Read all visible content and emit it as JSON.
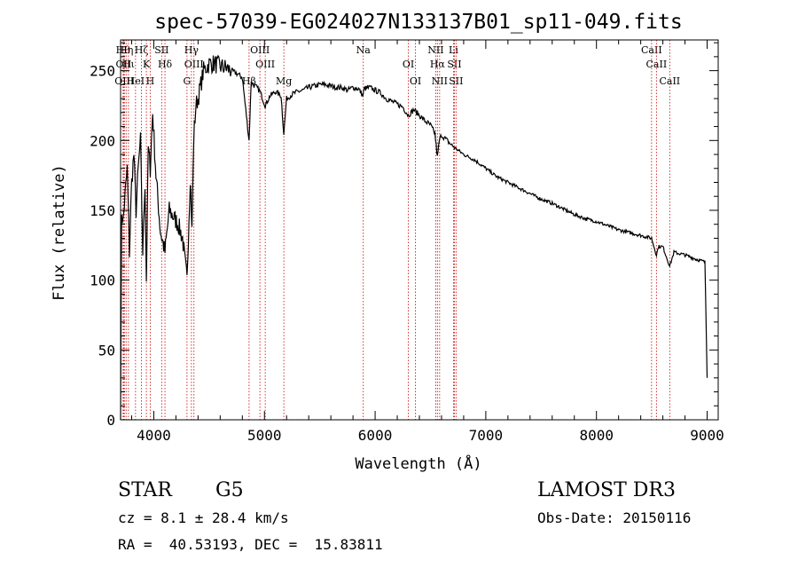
{
  "chart_data": {
    "type": "line",
    "title": "spec-57039-EG024027N133137B01_sp11-049.fits",
    "xlabel": "Wavelength (Å)",
    "ylabel": "Flux (relative)",
    "xlim": [
      3700,
      9100
    ],
    "ylim": [
      0,
      272
    ],
    "xticks": [
      4000,
      5000,
      6000,
      7000,
      8000,
      9000
    ],
    "yticks": [
      0,
      50,
      100,
      150,
      200,
      250
    ],
    "line_color": "#000000",
    "marker_color": "#cc0000",
    "series": [
      {
        "x": [
          3700,
          3710,
          3720,
          3740,
          3760,
          3780,
          3800,
          3820,
          3840,
          3860,
          3880,
          3900,
          3920,
          3933,
          3950,
          3968,
          3990,
          4020,
          4060,
          4101,
          4140,
          4180,
          4220,
          4260,
          4300,
          4330,
          4345,
          4360,
          4380,
          4400,
          4450,
          4500,
          4550,
          4600,
          4650,
          4700,
          4750,
          4800,
          4861,
          4880,
          4900,
          4930,
          4960,
          5007,
          5050,
          5100,
          5150,
          5175,
          5200,
          5250,
          5300,
          5350,
          5400,
          5450,
          5500,
          5550,
          5600,
          5650,
          5700,
          5750,
          5800,
          5850,
          5890,
          5900,
          5950,
          6000,
          6050,
          6100,
          6150,
          6200,
          6250,
          6300,
          6350,
          6400,
          6450,
          6500,
          6540,
          6563,
          6580,
          6600,
          6650,
          6700,
          6750,
          6800,
          6900,
          7000,
          7100,
          7200,
          7300,
          7400,
          7500,
          7600,
          7700,
          7800,
          7900,
          8000,
          8100,
          8200,
          8300,
          8400,
          8498,
          8542,
          8560,
          8600,
          8662,
          8700,
          8800,
          8900,
          8980,
          9000
        ],
        "y": [
          5,
          150,
          140,
          160,
          180,
          120,
          170,
          190,
          150,
          180,
          200,
          120,
          170,
          100,
          195,
          180,
          220,
          175,
          135,
          120,
          150,
          145,
          140,
          130,
          100,
          175,
          135,
          200,
          225,
          230,
          250,
          255,
          255,
          253,
          252,
          250,
          248,
          245,
          200,
          242,
          240,
          238,
          235,
          225,
          232,
          235,
          232,
          205,
          230,
          233,
          235,
          236,
          238,
          239,
          240,
          240,
          239,
          238,
          238,
          236,
          238,
          237,
          232,
          237,
          238,
          236,
          234,
          230,
          228,
          226,
          224,
          218,
          222,
          218,
          214,
          211,
          205,
          188,
          200,
          204,
          200,
          196,
          193,
          190,
          186,
          180,
          174,
          170,
          166,
          162,
          158,
          155,
          151,
          147,
          144,
          142,
          139,
          136,
          134,
          132,
          130,
          118,
          124,
          124,
          110,
          120,
          118,
          115,
          113,
          30
        ]
      }
    ],
    "line_markers": [
      {
        "x": 3722,
        "label": "Hθ"
      },
      {
        "x": 3727,
        "label": "OII"
      },
      {
        "x": 3734,
        "label": "OIII"
      },
      {
        "x": 3750,
        "label": "Hη"
      },
      {
        "x": 3771,
        "label": "Hι"
      },
      {
        "x": 3835,
        "label": "HeI"
      },
      {
        "x": 3889,
        "label": "Hζ"
      },
      {
        "x": 3933,
        "label": "K"
      },
      {
        "x": 3968,
        "label": "H"
      },
      {
        "x": 4071,
        "label": "SII"
      },
      {
        "x": 4101,
        "label": "Hδ"
      },
      {
        "x": 4300,
        "label": "G"
      },
      {
        "x": 4340,
        "label": "Hγ"
      },
      {
        "x": 4363,
        "label": "OIII"
      },
      {
        "x": 4861,
        "label": "Hβ"
      },
      {
        "x": 4959,
        "label": "OIII"
      },
      {
        "x": 5007,
        "label": "OIII"
      },
      {
        "x": 5175,
        "label": "Mg"
      },
      {
        "x": 5893,
        "label": "Na"
      },
      {
        "x": 6300,
        "label": "OI"
      },
      {
        "x": 6364,
        "label": "OI"
      },
      {
        "x": 6548,
        "label": "NII"
      },
      {
        "x": 6563,
        "label": "Hα"
      },
      {
        "x": 6583,
        "label": "NII"
      },
      {
        "x": 6708,
        "label": "Li"
      },
      {
        "x": 6716,
        "label": "SII"
      },
      {
        "x": 6731,
        "label": "SII"
      },
      {
        "x": 8498,
        "label": "CaII"
      },
      {
        "x": 8542,
        "label": "CaII"
      },
      {
        "x": 8662,
        "label": "CaII"
      }
    ]
  },
  "info": {
    "class": "STAR",
    "subclass": "G5",
    "survey": "LAMOST DR3",
    "cz": "cz = 8.1 ± 28.4 km/s",
    "obsdate": "Obs-Date: 20150116",
    "radec": "RA =  40.53193, DEC =  15.83811"
  }
}
